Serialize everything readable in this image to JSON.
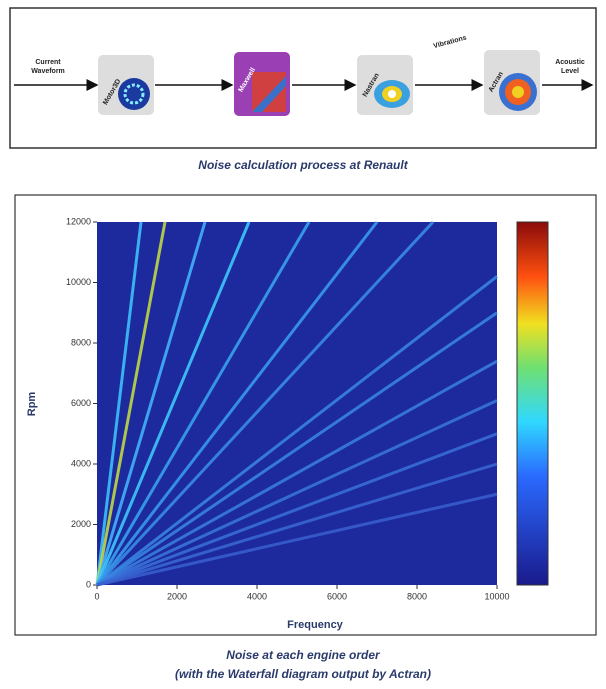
{
  "diagram": {
    "input": [
      "Current",
      "Waveform"
    ],
    "nodes": [
      {
        "label": "Motor3D"
      },
      {
        "label": "Maxwell"
      },
      {
        "label": "Nastran"
      },
      {
        "label": "Actran"
      }
    ],
    "edge_label": "Vibrations",
    "output": [
      "Acoustic",
      "Level"
    ],
    "caption": "Noise calculation process at Renault"
  },
  "chart_data": {
    "type": "line",
    "xlabel": "Frequency",
    "ylabel": "Rpm",
    "xlim": [
      0,
      10000
    ],
    "ylim": [
      0,
      12000
    ],
    "xticks": [
      0,
      2000,
      4000,
      6000,
      8000,
      10000
    ],
    "yticks": [
      0,
      2000,
      4000,
      6000,
      8000,
      10000,
      12000
    ],
    "series": [
      {
        "color": "#3fc8ff",
        "x": [
          0,
          1100
        ],
        "values": [
          0,
          12000
        ]
      },
      {
        "color": "#c8e040",
        "x": [
          0,
          1700
        ],
        "values": [
          0,
          12000
        ]
      },
      {
        "color": "#46b8ff",
        "x": [
          0,
          2700
        ],
        "values": [
          0,
          12000
        ]
      },
      {
        "color": "#40d0ff",
        "x": [
          0,
          3800
        ],
        "values": [
          0,
          12000
        ]
      },
      {
        "color": "#3aa8f0",
        "x": [
          0,
          5300
        ],
        "values": [
          0,
          12000
        ]
      },
      {
        "color": "#3aa0ee",
        "x": [
          0,
          7000
        ],
        "values": [
          0,
          12000
        ]
      },
      {
        "color": "#3a90e8",
        "x": [
          0,
          8400
        ],
        "values": [
          0,
          12000
        ]
      },
      {
        "color": "#3a88e4",
        "x": [
          0,
          10000
        ],
        "values": [
          0,
          10200
        ]
      },
      {
        "color": "#3a88e4",
        "x": [
          0,
          10000
        ],
        "values": [
          0,
          9000
        ]
      },
      {
        "color": "#3a80e0",
        "x": [
          0,
          10000
        ],
        "values": [
          0,
          7400
        ]
      },
      {
        "color": "#3a78dc",
        "x": [
          0,
          10000
        ],
        "values": [
          0,
          6100
        ]
      },
      {
        "color": "#3a70d8",
        "x": [
          0,
          10000
        ],
        "values": [
          0,
          5000
        ]
      },
      {
        "color": "#3a68d4",
        "x": [
          0,
          10000
        ],
        "values": [
          0,
          4000
        ]
      },
      {
        "color": "#3a60d0",
        "x": [
          0,
          10000
        ],
        "values": [
          0,
          3000
        ]
      }
    ],
    "caption": [
      "Noise at each engine order",
      "(with the Waterfall diagram output by Actran)"
    ]
  }
}
